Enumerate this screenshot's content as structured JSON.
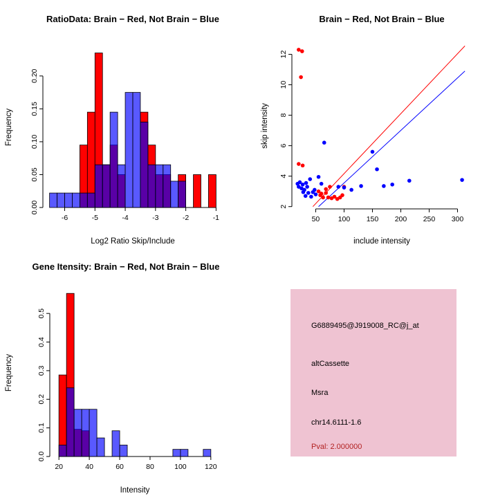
{
  "chart_data": [
    {
      "type": "bar",
      "title": "RatioData: Brain − Red, Not Brain − Blue",
      "xlabel": "Log2 Ratio Skip/Include",
      "ylabel": "Frequency",
      "xlim": [
        -6.72,
        -0.78
      ],
      "ylim": [
        0,
        0.244
      ],
      "xticks": [
        -6,
        -5,
        -4,
        -3,
        -2,
        -1
      ],
      "xtick_labels": [
        "-6",
        "-5",
        "-4",
        "-3",
        "-2",
        "-1"
      ],
      "yticks": [
        0.0,
        0.05,
        0.1,
        0.15,
        0.2
      ],
      "ytick_labels": [
        "0.00",
        "0.05",
        "0.10",
        "0.15",
        "0.20"
      ],
      "bin_width": 0.25,
      "grid": false,
      "legend": "none",
      "series": [
        {
          "name": "Brain",
          "color": "#FF0000",
          "opacity": 1,
          "bins": [
            [
              -5.5,
              0.095
            ],
            [
              -5.25,
              0.145
            ],
            [
              -5.0,
              0.235
            ],
            [
              -4.75,
              0.065
            ],
            [
              -4.5,
              0.095
            ],
            [
              -4.25,
              0.05
            ],
            [
              -3.5,
              0.145
            ],
            [
              -3.25,
              0.095
            ],
            [
              -3.0,
              0.05
            ],
            [
              -2.75,
              0.05
            ],
            [
              -2.25,
              0.05
            ],
            [
              -1.75,
              0.05
            ],
            [
              -1.25,
              0.05
            ]
          ]
        },
        {
          "name": "Not Brain",
          "color": "#0000FF",
          "opacity": 0.65,
          "bins": [
            [
              -6.5,
              0.022
            ],
            [
              -6.25,
              0.022
            ],
            [
              -6.0,
              0.022
            ],
            [
              -5.75,
              0.022
            ],
            [
              -5.5,
              0.022
            ],
            [
              -5.25,
              0.022
            ],
            [
              -5.0,
              0.065
            ],
            [
              -4.75,
              0.065
            ],
            [
              -4.5,
              0.145
            ],
            [
              -4.25,
              0.065
            ],
            [
              -4.0,
              0.175
            ],
            [
              -3.75,
              0.175
            ],
            [
              -3.5,
              0.13
            ],
            [
              -3.25,
              0.065
            ],
            [
              -3.0,
              0.065
            ],
            [
              -2.75,
              0.065
            ],
            [
              -2.5,
              0.04
            ],
            [
              -2.25,
              0.04
            ]
          ]
        }
      ]
    },
    {
      "type": "scatter",
      "title": "Brain − Red, Not Brain − Blue",
      "xlabel": "include intensity",
      "ylabel": "skip intensity",
      "xlim": [
        8,
        325
      ],
      "ylim": [
        1.85,
        12.75
      ],
      "xticks": [
        50,
        100,
        150,
        200,
        250,
        300
      ],
      "xtick_labels": [
        "50",
        "100",
        "150",
        "200",
        "250",
        "300"
      ],
      "yticks": [
        2,
        4,
        6,
        8,
        10,
        12
      ],
      "ytick_labels": [
        "2",
        "4",
        "6",
        "8",
        "10",
        "12"
      ],
      "grid": false,
      "legend": "none",
      "series": [
        {
          "name": "Brain",
          "color": "#FF0000",
          "points": [
            [
              20,
              12.3
            ],
            [
              26,
              12.2
            ],
            [
              24,
              10.5
            ],
            [
              20,
              4.8
            ],
            [
              27,
              4.7
            ],
            [
              55,
              3.0
            ],
            [
              60,
              2.85
            ],
            [
              63,
              2.6
            ],
            [
              68,
              3.15
            ],
            [
              68,
              2.9
            ],
            [
              72,
              2.6
            ],
            [
              75,
              3.3
            ],
            [
              78,
              2.55
            ],
            [
              83,
              2.65
            ],
            [
              88,
              2.5
            ],
            [
              93,
              2.6
            ],
            [
              97,
              2.75
            ],
            [
              100,
              3.3
            ],
            [
              58,
              2.75
            ]
          ]
        },
        {
          "name": "Not Brain",
          "color": "#0000FF",
          "points": [
            [
              18,
              3.5
            ],
            [
              20,
              3.3
            ],
            [
              22,
              3.6
            ],
            [
              25,
              3.2
            ],
            [
              27,
              3.45
            ],
            [
              28,
              2.95
            ],
            [
              30,
              3.1
            ],
            [
              32,
              2.7
            ],
            [
              33,
              3.55
            ],
            [
              35,
              3.3
            ],
            [
              37,
              2.9
            ],
            [
              40,
              3.8
            ],
            [
              42,
              2.65
            ],
            [
              45,
              2.95
            ],
            [
              48,
              3.1
            ],
            [
              50,
              2.8
            ],
            [
              55,
              3.95
            ],
            [
              60,
              3.5
            ],
            [
              65,
              6.2
            ],
            [
              90,
              3.3
            ],
            [
              100,
              3.25
            ],
            [
              113,
              3.1
            ],
            [
              130,
              3.35
            ],
            [
              150,
              5.6
            ],
            [
              158,
              4.45
            ],
            [
              170,
              3.35
            ],
            [
              185,
              3.45
            ],
            [
              215,
              3.7
            ],
            [
              308,
              3.75
            ]
          ]
        }
      ],
      "lines": [
        {
          "name": "brain-fit-line",
          "color": "#FF0000",
          "from": [
            45,
            2.0
          ],
          "to": [
            313,
            12.55
          ]
        },
        {
          "name": "notbrain-fit-line",
          "color": "#0000FF",
          "from": [
            55,
            2.0
          ],
          "to": [
            313,
            10.9
          ]
        }
      ]
    },
    {
      "type": "bar",
      "title": "Gene Itensity: Brain − Red, Not Brain − Blue",
      "xlabel": "Intensity",
      "ylabel": "Frequency",
      "xlim": [
        14,
        126
      ],
      "ylim": [
        0,
        0.585
      ],
      "xticks": [
        20,
        40,
        60,
        80,
        100,
        120
      ],
      "xtick_labels": [
        "20",
        "40",
        "60",
        "80",
        "100",
        "120"
      ],
      "yticks": [
        0.0,
        0.1,
        0.2,
        0.3,
        0.4,
        0.5
      ],
      "ytick_labels": [
        "0.0",
        "0.1",
        "0.2",
        "0.3",
        "0.4",
        "0.5"
      ],
      "bin_width": 5,
      "grid": false,
      "legend": "none",
      "series": [
        {
          "name": "Brain",
          "color": "#FF0000",
          "opacity": 1,
          "bins": [
            [
              20,
              0.285
            ],
            [
              25,
              0.57
            ],
            [
              30,
              0.095
            ],
            [
              35,
              0.09
            ]
          ]
        },
        {
          "name": "Not Brain",
          "color": "#0000FF",
          "opacity": 0.65,
          "bins": [
            [
              20,
              0.04
            ],
            [
              25,
              0.24
            ],
            [
              30,
              0.165
            ],
            [
              35,
              0.165
            ],
            [
              40,
              0.165
            ],
            [
              45,
              0.065
            ],
            [
              55,
              0.09
            ],
            [
              60,
              0.04
            ],
            [
              95,
              0.025
            ],
            [
              100,
              0.025
            ],
            [
              115,
              0.025
            ]
          ]
        }
      ]
    },
    {
      "type": "table",
      "name": "gene-info-card",
      "bg": "#EFC3D2",
      "lines": [
        {
          "text": "G6889495@J919008_RC@j_at",
          "color": "#000000"
        },
        {
          "text": "altCassette",
          "color": "#000000"
        },
        {
          "text": "Msra",
          "color": "#000000"
        },
        {
          "text": "chr14.6111-1.6",
          "color": "#000000"
        },
        {
          "text": "Pval: 2.000000",
          "color": "#B22222"
        }
      ]
    }
  ]
}
